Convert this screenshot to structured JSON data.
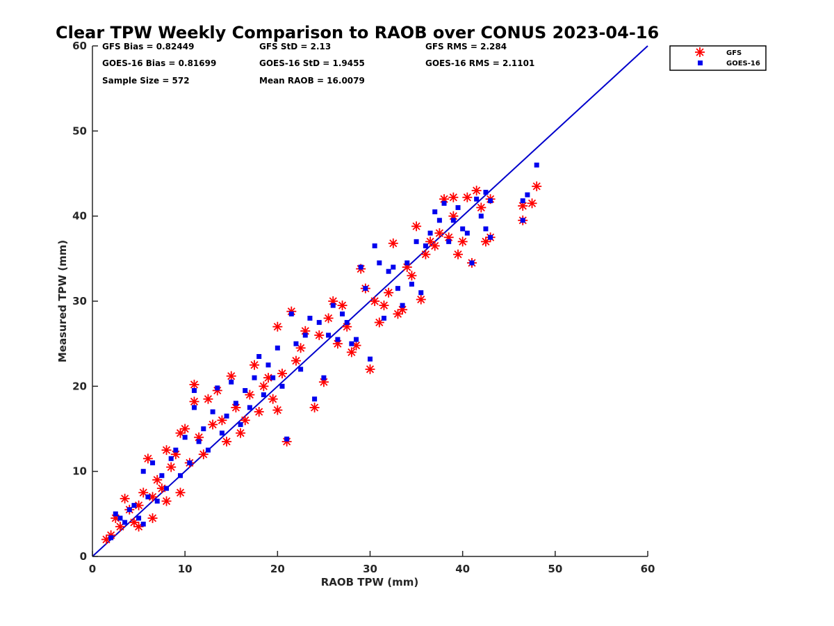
{
  "chart_data": {
    "type": "scatter",
    "title": "Clear TPW Weekly Comparison to RAOB over CONUS 2023-04-16",
    "xlabel": "RAOB TPW (mm)",
    "ylabel": "Measured TPW (mm)",
    "xlim": [
      0,
      60
    ],
    "ylim": [
      0,
      60
    ],
    "xticks": [
      "0",
      "10",
      "20",
      "30",
      "40",
      "50",
      "60"
    ],
    "yticks": [
      "0",
      "10",
      "20",
      "30",
      "40",
      "50",
      "60"
    ],
    "grid": false,
    "legend_position": "outside-top-right",
    "reference_line": {
      "x": [
        0,
        60
      ],
      "y": [
        0,
        60
      ],
      "color": "#0000cc"
    },
    "stats": {
      "gfs_bias": "GFS Bias = 0.82449",
      "gfs_std": "GFS StD = 2.13",
      "gfs_rms": "GFS RMS = 2.284",
      "goes_bias": "GOES-16 Bias = 0.81699",
      "goes_std": "GOES-16 StD = 1.9455",
      "goes_rms": "GOES-16 RMS = 2.1101",
      "sample_size": "Sample Size = 572",
      "mean_raob": "Mean RAOB = 16.0079"
    },
    "series": [
      {
        "name": "GFS",
        "marker": "asterisk",
        "color": "#ff0000",
        "points": [
          [
            1.5,
            2.0
          ],
          [
            2.0,
            2.5
          ],
          [
            2.5,
            4.5
          ],
          [
            3.0,
            3.5
          ],
          [
            3.5,
            6.8
          ],
          [
            4.0,
            5.5
          ],
          [
            4.5,
            4.0
          ],
          [
            5.0,
            6.0
          ],
          [
            5.0,
            3.5
          ],
          [
            5.5,
            7.5
          ],
          [
            6.0,
            11.5
          ],
          [
            6.5,
            4.5
          ],
          [
            6.5,
            7.0
          ],
          [
            7.0,
            9.0
          ],
          [
            7.5,
            8.0
          ],
          [
            8.0,
            12.5
          ],
          [
            8.0,
            6.5
          ],
          [
            8.5,
            10.5
          ],
          [
            9.0,
            12.0
          ],
          [
            9.5,
            7.5
          ],
          [
            9.5,
            14.5
          ],
          [
            10.0,
            15.0
          ],
          [
            10.5,
            11.0
          ],
          [
            11.0,
            20.2
          ],
          [
            11.0,
            18.2
          ],
          [
            11.5,
            14.0
          ],
          [
            12.0,
            12.0
          ],
          [
            12.5,
            18.5
          ],
          [
            13.0,
            15.5
          ],
          [
            13.5,
            19.5
          ],
          [
            14.0,
            16.0
          ],
          [
            14.5,
            13.5
          ],
          [
            15.0,
            21.2
          ],
          [
            15.5,
            17.5
          ],
          [
            16.0,
            14.5
          ],
          [
            16.5,
            16.0
          ],
          [
            17.0,
            19.0
          ],
          [
            17.5,
            22.5
          ],
          [
            18.0,
            17.0
          ],
          [
            18.5,
            20.0
          ],
          [
            19.0,
            21.0
          ],
          [
            19.5,
            18.5
          ],
          [
            20.0,
            27.0
          ],
          [
            20.0,
            17.2
          ],
          [
            20.5,
            21.5
          ],
          [
            21.0,
            13.5
          ],
          [
            21.5,
            28.8
          ],
          [
            22.0,
            23.0
          ],
          [
            22.5,
            24.5
          ],
          [
            23.0,
            26.5
          ],
          [
            24.0,
            17.5
          ],
          [
            24.5,
            26.0
          ],
          [
            25.0,
            20.5
          ],
          [
            25.5,
            28.0
          ],
          [
            26.0,
            30.0
          ],
          [
            26.5,
            25.0
          ],
          [
            27.0,
            29.5
          ],
          [
            27.5,
            27.0
          ],
          [
            28.0,
            24.0
          ],
          [
            28.5,
            24.8
          ],
          [
            29.0,
            33.8
          ],
          [
            29.5,
            31.5
          ],
          [
            30.0,
            22.0
          ],
          [
            30.5,
            30.0
          ],
          [
            31.0,
            27.5
          ],
          [
            31.5,
            29.5
          ],
          [
            32.0,
            31.0
          ],
          [
            32.5,
            36.8
          ],
          [
            33.0,
            28.5
          ],
          [
            33.5,
            29.0
          ],
          [
            34.0,
            34.0
          ],
          [
            34.5,
            33.0
          ],
          [
            35.0,
            38.8
          ],
          [
            35.5,
            30.2
          ],
          [
            36.0,
            35.5
          ],
          [
            36.5,
            37.0
          ],
          [
            37.0,
            36.5
          ],
          [
            37.5,
            38.0
          ],
          [
            38.0,
            42.0
          ],
          [
            38.5,
            37.5
          ],
          [
            39.0,
            40.0
          ],
          [
            39.0,
            42.2
          ],
          [
            39.5,
            35.5
          ],
          [
            40.0,
            37.0
          ],
          [
            40.5,
            42.2
          ],
          [
            41.0,
            34.5
          ],
          [
            41.5,
            43.0
          ],
          [
            42.0,
            41.0
          ],
          [
            42.5,
            37.0
          ],
          [
            43.0,
            42.0
          ],
          [
            43.0,
            37.5
          ],
          [
            46.5,
            39.5
          ],
          [
            46.5,
            41.2
          ],
          [
            47.5,
            41.5
          ],
          [
            48.0,
            43.5
          ]
        ]
      },
      {
        "name": "GOES-16",
        "marker": "square",
        "color": "#0000ee",
        "points": [
          [
            2.0,
            2.2
          ],
          [
            2.5,
            5.0
          ],
          [
            3.0,
            4.5
          ],
          [
            3.5,
            4.0
          ],
          [
            4.0,
            5.5
          ],
          [
            4.5,
            6.0
          ],
          [
            5.0,
            4.5
          ],
          [
            5.5,
            3.8
          ],
          [
            5.5,
            10.0
          ],
          [
            6.0,
            7.0
          ],
          [
            6.5,
            11.0
          ],
          [
            7.0,
            6.5
          ],
          [
            7.5,
            9.5
          ],
          [
            8.0,
            8.0
          ],
          [
            8.5,
            11.5
          ],
          [
            9.0,
            12.5
          ],
          [
            9.5,
            9.5
          ],
          [
            10.0,
            14.0
          ],
          [
            10.5,
            11.0
          ],
          [
            11.0,
            19.5
          ],
          [
            11.0,
            17.5
          ],
          [
            11.5,
            13.5
          ],
          [
            12.0,
            15.0
          ],
          [
            12.5,
            12.5
          ],
          [
            13.0,
            17.0
          ],
          [
            13.5,
            19.8
          ],
          [
            14.0,
            14.5
          ],
          [
            14.5,
            16.5
          ],
          [
            15.0,
            20.5
          ],
          [
            15.5,
            18.0
          ],
          [
            16.0,
            15.5
          ],
          [
            16.5,
            19.5
          ],
          [
            17.0,
            17.5
          ],
          [
            17.5,
            21.0
          ],
          [
            18.0,
            23.5
          ],
          [
            18.5,
            19.0
          ],
          [
            19.0,
            22.5
          ],
          [
            19.5,
            21.0
          ],
          [
            20.0,
            24.5
          ],
          [
            20.5,
            20.0
          ],
          [
            21.0,
            13.8
          ],
          [
            21.5,
            28.5
          ],
          [
            22.0,
            25.0
          ],
          [
            22.5,
            22.0
          ],
          [
            23.0,
            26.0
          ],
          [
            23.5,
            28.0
          ],
          [
            24.0,
            18.5
          ],
          [
            24.5,
            27.5
          ],
          [
            25.0,
            21.0
          ],
          [
            25.5,
            26.0
          ],
          [
            26.0,
            29.5
          ],
          [
            26.5,
            25.5
          ],
          [
            27.0,
            28.5
          ],
          [
            27.5,
            27.5
          ],
          [
            28.0,
            25.0
          ],
          [
            28.5,
            25.5
          ],
          [
            29.0,
            34.0
          ],
          [
            29.5,
            31.5
          ],
          [
            30.0,
            23.2
          ],
          [
            30.5,
            36.5
          ],
          [
            31.0,
            34.5
          ],
          [
            31.5,
            28.0
          ],
          [
            32.0,
            33.5
          ],
          [
            32.5,
            34.0
          ],
          [
            33.0,
            31.5
          ],
          [
            33.5,
            29.5
          ],
          [
            34.0,
            34.5
          ],
          [
            34.5,
            32.0
          ],
          [
            35.0,
            37.0
          ],
          [
            35.5,
            31.0
          ],
          [
            36.0,
            36.5
          ],
          [
            36.5,
            38.0
          ],
          [
            37.0,
            40.5
          ],
          [
            37.5,
            39.5
          ],
          [
            38.0,
            41.5
          ],
          [
            38.5,
            37.0
          ],
          [
            39.0,
            39.5
          ],
          [
            39.5,
            41.0
          ],
          [
            40.0,
            38.5
          ],
          [
            40.5,
            38.0
          ],
          [
            41.0,
            34.5
          ],
          [
            41.5,
            42.0
          ],
          [
            42.0,
            40.0
          ],
          [
            42.5,
            38.5
          ],
          [
            42.5,
            42.8
          ],
          [
            43.0,
            37.5
          ],
          [
            43.0,
            41.8
          ],
          [
            46.5,
            39.5
          ],
          [
            46.5,
            41.8
          ],
          [
            47.0,
            42.5
          ],
          [
            48.0,
            46.0
          ]
        ]
      }
    ]
  }
}
